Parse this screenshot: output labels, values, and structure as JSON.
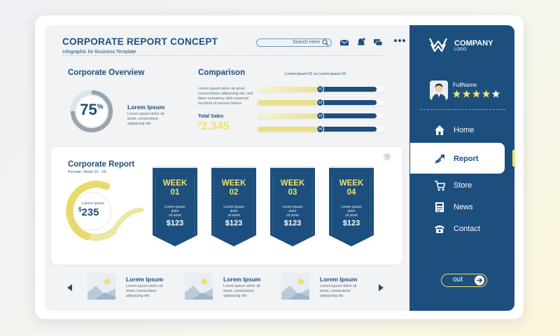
{
  "header": {
    "title": "CORPORATE REPORT CONCEPT",
    "subtitle": "Infographic for Business Template",
    "search_placeholder": "Search Here"
  },
  "overview": {
    "heading": "Corporate Overview",
    "percent": "75",
    "percent_sign": "%",
    "percent_value": 75,
    "label": "Lorem Ipsum",
    "desc": [
      "Lorem ipsum dolor sit",
      "amet, consectetur",
      "adipiscing elit"
    ]
  },
  "comparison": {
    "heading": "Comparison",
    "legend": "Lorem ipsum 01  vs  Lorem ipsum 02",
    "desc": [
      "Lorem ipsum dolor sit amet,",
      "consectetuer adipiscing elit, sed",
      "diam nonummy nibh euismod",
      "tincidunt ut laoreet dolore."
    ],
    "total_label": "Total Sales",
    "total_currency": "$",
    "total_value": "2.345",
    "bars": [
      {
        "badge": "01",
        "fraction": 0.5,
        "color": "yellow"
      },
      {
        "badge": "02",
        "fraction": 0.5,
        "color": "blue"
      },
      {
        "badge": "03",
        "fraction": 0.5,
        "color": "yellow"
      },
      {
        "badge": "04",
        "fraction": 0.5,
        "color": "blue"
      }
    ]
  },
  "report": {
    "heading": "Corporate Report",
    "period": "Periode: Week 01 - 04",
    "gauge_label": "Lorem Ipsum",
    "gauge_currency": "$",
    "gauge_value": "235",
    "help": "?",
    "weeks": [
      {
        "label": "WEEK 01",
        "line1": "WEEK",
        "line2": "01",
        "desc": [
          "Lorem Ipsum",
          "dolor",
          "sit amet"
        ],
        "value": "$123"
      },
      {
        "label": "WEEK 02",
        "line1": "WEEK",
        "line2": "02",
        "desc": [
          "Lorem Ipsum",
          "dolor",
          "sit amet"
        ],
        "value": "$123"
      },
      {
        "label": "WEEK 03",
        "line1": "WEEK",
        "line2": "03",
        "desc": [
          "Lorem Ipsum",
          "dolor",
          "sit amet"
        ],
        "value": "$123"
      },
      {
        "label": "WEEK 04",
        "line1": "WEEK",
        "line2": "04",
        "desc": [
          "Lorem Ipsum",
          "dolor",
          "sit amet"
        ],
        "value": "$123"
      }
    ]
  },
  "carousel": {
    "items": [
      {
        "title": "Lorem Ipsum",
        "desc": [
          "Lorem ipsum dolor sit",
          "amet, consectetur",
          "adipiscing elit"
        ]
      },
      {
        "title": "Lorem Ipsum",
        "desc": [
          "Lorem ipsum dolor sit",
          "amet, consectetur",
          "adipiscing elit"
        ]
      },
      {
        "title": "Lorem Ipsum",
        "desc": [
          "Lorem ipsum dolor sit",
          "amet, consectetur",
          "adipiscing elit"
        ]
      }
    ]
  },
  "sidebar": {
    "company": "COMPANY",
    "logo_sub": "LOGO",
    "user_name": "FullName",
    "rating": 4,
    "rating_max": 5,
    "nav": [
      {
        "label": "Home",
        "icon": "home-icon"
      },
      {
        "label": "Report",
        "icon": "report-icon",
        "active": true
      },
      {
        "label": "Store",
        "icon": "cart-icon"
      },
      {
        "label": "News",
        "icon": "newspaper-icon"
      },
      {
        "label": "Contact",
        "icon": "phone-icon"
      }
    ],
    "out_label": "out"
  },
  "colors": {
    "primary": "#1d4f7e",
    "accent_yellow": "#f0e16a",
    "background": "#f1f3f4"
  }
}
